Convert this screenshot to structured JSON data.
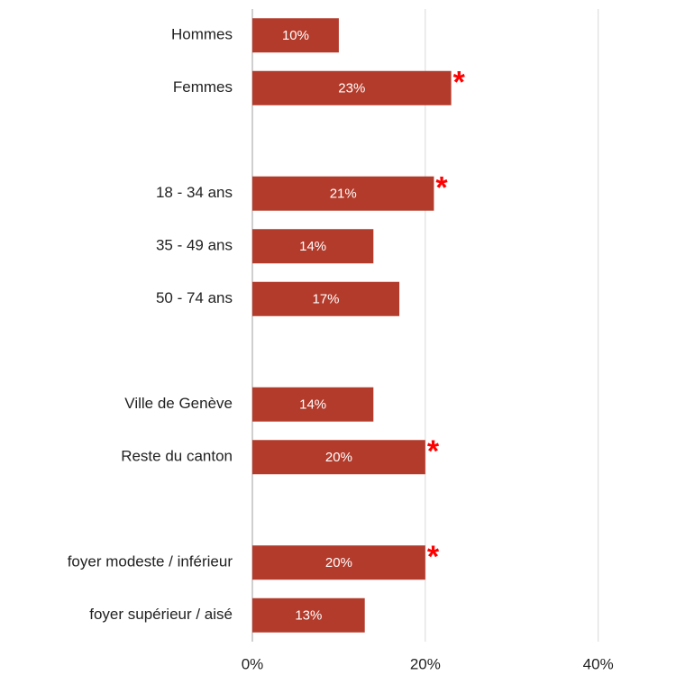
{
  "chart_data": {
    "type": "bar",
    "orientation": "horizontal",
    "categories": [
      "Hommes",
      "Femmes",
      null,
      "18 - 34 ans",
      "35 - 49 ans",
      "50 - 74 ans",
      null,
      "Ville de Genève",
      "Reste du canton",
      null,
      "foyer modeste / inférieur",
      "foyer supérieur / aisé"
    ],
    "values": [
      10,
      23,
      null,
      21,
      14,
      17,
      null,
      14,
      20,
      null,
      20,
      13
    ],
    "value_labels": [
      "10%",
      "23%",
      null,
      "21%",
      "14%",
      "17%",
      null,
      "14%",
      "20%",
      null,
      "20%",
      "13%"
    ],
    "significant": [
      false,
      true,
      false,
      true,
      false,
      false,
      false,
      false,
      true,
      false,
      true,
      false
    ],
    "significance_marker": "*",
    "color": "#b33b2b",
    "marker_color": "#ff0000",
    "xlim": [
      0,
      49
    ],
    "xticks": [
      {
        "value": 0,
        "label": "0%"
      },
      {
        "value": 20,
        "label": "20%"
      },
      {
        "value": 40,
        "label": "40%"
      }
    ],
    "grid": true
  }
}
